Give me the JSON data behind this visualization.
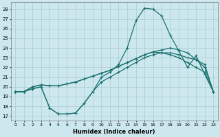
{
  "xlabel": "Humidex (Indice chaleur)",
  "xlim": [
    -0.5,
    23.5
  ],
  "ylim": [
    16.5,
    28.7
  ],
  "bg_color": "#cce8ee",
  "grid_color": "#aacccc",
  "line_color": "#1a7070",
  "line1": [
    19.5,
    19.5,
    19.8,
    20.0,
    17.8,
    17.2,
    17.2,
    17.3,
    18.3,
    19.5,
    20.5,
    21.0,
    21.5,
    22.0,
    22.5,
    23.0,
    23.3,
    23.5,
    23.5,
    23.3,
    23.0,
    22.8,
    22.3,
    19.5
  ],
  "line2": [
    19.5,
    19.5,
    19.8,
    20.0,
    17.8,
    17.2,
    17.2,
    17.3,
    18.3,
    19.5,
    21.0,
    21.5,
    22.3,
    24.0,
    26.8,
    28.1,
    28.0,
    27.3,
    25.3,
    23.7,
    22.0,
    23.2,
    21.3,
    19.5
  ],
  "line3": [
    19.5,
    19.5,
    20.0,
    20.2,
    20.1,
    20.1,
    20.3,
    20.5,
    20.8,
    21.1,
    21.4,
    21.7,
    22.1,
    22.5,
    22.9,
    23.3,
    23.6,
    23.5,
    23.3,
    23.0,
    22.5,
    22.0,
    21.5,
    19.5
  ],
  "line4": [
    19.5,
    19.5,
    20.0,
    20.2,
    20.1,
    20.1,
    20.3,
    20.5,
    20.8,
    21.1,
    21.4,
    21.7,
    22.1,
    22.5,
    22.9,
    23.3,
    23.6,
    23.8,
    24.0,
    23.8,
    23.5,
    22.8,
    22.0,
    19.5
  ],
  "yticks": [
    17,
    18,
    19,
    20,
    21,
    22,
    23,
    24,
    25,
    26,
    27,
    28
  ],
  "xticks": [
    0,
    1,
    2,
    3,
    4,
    5,
    6,
    7,
    8,
    9,
    10,
    11,
    12,
    13,
    14,
    15,
    16,
    17,
    18,
    19,
    20,
    21,
    22,
    23
  ]
}
